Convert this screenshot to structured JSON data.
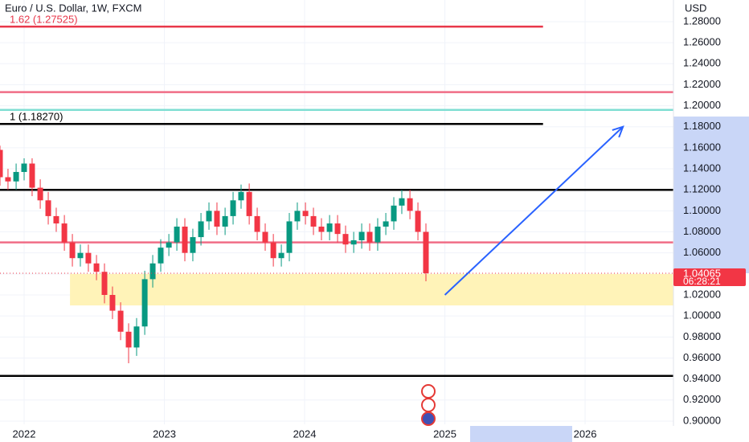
{
  "chart_data": {
    "type": "candlestick",
    "title": "Euro / U.S. Dollar, 1W, FXCM",
    "y_axis_label": "USD",
    "countdown": "06:28:21",
    "up_color": "#089981",
    "down_color": "#f23645",
    "xlim": [
      2021.828,
      2026.63
    ],
    "xticks": [
      2022,
      2023,
      2024,
      2025,
      2026
    ],
    "ylim": [
      0.8969,
      1.3006
    ],
    "yticks": [
      {
        "value": 0.9,
        "label": "0.90000"
      },
      {
        "value": 0.92,
        "label": "0.92000"
      },
      {
        "value": 0.94,
        "label": "0.94000"
      },
      {
        "value": 0.96,
        "label": "0.96000"
      },
      {
        "value": 0.98,
        "label": "0.98000"
      },
      {
        "value": 1.0,
        "label": "1.00000"
      },
      {
        "value": 1.02,
        "label": "1.02000"
      },
      {
        "value": 1.04,
        "label": "1.04000"
      },
      {
        "value": 1.06,
        "label": "1.06000"
      },
      {
        "value": 1.08,
        "label": "1.08000"
      },
      {
        "value": 1.1,
        "label": "1.10000"
      },
      {
        "value": 1.12,
        "label": "1.12000"
      },
      {
        "value": 1.14,
        "label": "1.14000"
      },
      {
        "value": 1.16,
        "label": "1.16000"
      },
      {
        "value": 1.18,
        "label": "1.18000"
      },
      {
        "value": 1.2,
        "label": "1.20000"
      },
      {
        "value": 1.22,
        "label": "1.22000"
      },
      {
        "value": 1.24,
        "label": "1.24000"
      },
      {
        "value": 1.26,
        "label": "1.26000"
      },
      {
        "value": 1.28,
        "label": "1.28000"
      }
    ],
    "grid": true,
    "x": [
      2021.828,
      2021.885,
      2021.943,
      2022.0,
      2022.057,
      2022.115,
      2022.172,
      2022.229,
      2022.287,
      2022.344,
      2022.401,
      2022.458,
      2022.516,
      2022.573,
      2022.63,
      2022.688,
      2022.745,
      2022.802,
      2022.86,
      2022.917,
      2022.974,
      2023.032,
      2023.089,
      2023.146,
      2023.203,
      2023.261,
      2023.318,
      2023.375,
      2023.433,
      2023.49,
      2023.547,
      2023.605,
      2023.662,
      2023.719,
      2023.777,
      2023.834,
      2023.891,
      2023.948,
      2024.006,
      2024.063,
      2024.12,
      2024.178,
      2024.235,
      2024.292,
      2024.35,
      2024.407,
      2024.464,
      2024.521,
      2024.579,
      2024.636,
      2024.693,
      2024.751,
      2024.808,
      2024.865
    ],
    "open": [
      1.158,
      1.132,
      1.128,
      1.137,
      1.145,
      1.122,
      1.11,
      1.095,
      1.088,
      1.07,
      1.055,
      1.06,
      1.05,
      1.042,
      1.02,
      1.005,
      0.985,
      0.97,
      0.99,
      1.035,
      1.05,
      1.065,
      1.07,
      1.085,
      1.06,
      1.075,
      1.09,
      1.1,
      1.085,
      1.095,
      1.11,
      1.118,
      1.095,
      1.08,
      1.07,
      1.055,
      1.06,
      1.09,
      1.1,
      1.095,
      1.085,
      1.08,
      1.088,
      1.078,
      1.068,
      1.072,
      1.08,
      1.07,
      1.085,
      1.09,
      1.105,
      1.112,
      1.1,
      1.08
    ],
    "high": [
      1.162,
      1.14,
      1.145,
      1.15,
      1.15,
      1.13,
      1.118,
      1.103,
      1.096,
      1.078,
      1.068,
      1.068,
      1.058,
      1.05,
      1.028,
      1.013,
      0.993,
      0.998,
      1.043,
      1.058,
      1.073,
      1.078,
      1.093,
      1.093,
      1.083,
      1.098,
      1.108,
      1.108,
      1.103,
      1.118,
      1.125,
      1.126,
      1.103,
      1.088,
      1.078,
      1.068,
      1.098,
      1.108,
      1.108,
      1.103,
      1.093,
      1.096,
      1.096,
      1.086,
      1.08,
      1.088,
      1.088,
      1.093,
      1.098,
      1.113,
      1.12,
      1.12,
      1.108,
      1.088
    ],
    "low": [
      1.124,
      1.12,
      1.12,
      1.129,
      1.114,
      1.102,
      1.087,
      1.08,
      1.062,
      1.047,
      1.047,
      1.042,
      1.034,
      1.012,
      0.997,
      0.977,
      0.955,
      0.962,
      0.982,
      1.027,
      1.042,
      1.057,
      1.062,
      1.052,
      1.052,
      1.067,
      1.082,
      1.077,
      1.077,
      1.087,
      1.102,
      1.087,
      1.072,
      1.062,
      1.047,
      1.047,
      1.052,
      1.082,
      1.087,
      1.077,
      1.072,
      1.072,
      1.07,
      1.06,
      1.06,
      1.064,
      1.062,
      1.062,
      1.077,
      1.082,
      1.097,
      1.092,
      1.072,
      1.033
    ],
    "close": [
      1.132,
      1.128,
      1.137,
      1.145,
      1.122,
      1.11,
      1.095,
      1.088,
      1.07,
      1.055,
      1.06,
      1.05,
      1.042,
      1.02,
      1.005,
      0.985,
      0.97,
      0.99,
      1.035,
      1.05,
      1.065,
      1.07,
      1.085,
      1.06,
      1.075,
      1.09,
      1.1,
      1.085,
      1.095,
      1.11,
      1.118,
      1.095,
      1.08,
      1.07,
      1.055,
      1.06,
      1.09,
      1.1,
      1.095,
      1.085,
      1.08,
      1.088,
      1.078,
      1.068,
      1.072,
      1.08,
      1.07,
      1.085,
      1.09,
      1.105,
      1.112,
      1.1,
      1.08,
      1.04065
    ],
    "levels": [
      {
        "value": 1.27525,
        "color": "#e8374a",
        "label": "1.62 (1.27525)",
        "x_end": 2025.7
      },
      {
        "value": 1.213,
        "color": "#f06d86",
        "x_end": 2026.63
      },
      {
        "value": 1.196,
        "color": "#7fded3",
        "x_end": 2026.63
      },
      {
        "value": 1.1827,
        "color": "#000000",
        "label": "1 (1.18270)",
        "x_end": 2025.7
      },
      {
        "value": 1.12,
        "color": "#000000",
        "x_end": 2026.63
      },
      {
        "value": 1.07,
        "color": "#f06d86",
        "x_end": 2026.63
      },
      {
        "value": 0.943,
        "color": "#000000",
        "x_end": 2026.63
      }
    ],
    "zone": {
      "x": [
        2022.327,
        2026.63
      ],
      "y": [
        1.01,
        1.04
      ],
      "color": "#fff3b8"
    },
    "arrow": {
      "x": [
        2025.0,
        2026.27
      ],
      "y": [
        1.02,
        1.18
      ],
      "color": "#2962ff"
    }
  }
}
